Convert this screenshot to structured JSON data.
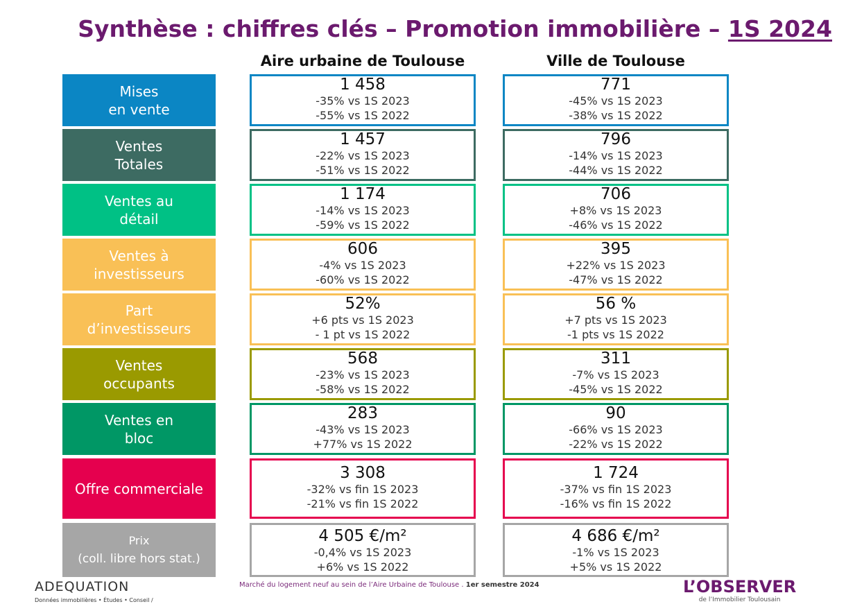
{
  "title": {
    "main": "Synthèse : chiffres clés – Promotion immobilière – ",
    "year": "1S 2024"
  },
  "columns": {
    "left": "Aire urbaine de Toulouse",
    "right": "Ville de Toulouse"
  },
  "rows": [
    {
      "label_l1": "Mises",
      "label_l2": "en vente",
      "color": "#0b86c4",
      "left": {
        "value": "1 458",
        "l1": "-35% vs 1S 2023",
        "l2": "-55% vs 1S 2022"
      },
      "right": {
        "value": "771",
        "l1": "-45% vs 1S 2023",
        "l2": "-38% vs 1S 2022"
      }
    },
    {
      "label_l1": "Ventes",
      "label_l2": "Totales",
      "color": "#3d6b62",
      "left": {
        "value": "1 457",
        "l1": "-22% vs 1S 2023",
        "l2": "-51% vs 1S 2022"
      },
      "right": {
        "value": "796",
        "l1": "-14% vs 1S 2023",
        "l2": "-44% vs 1S 2022"
      }
    },
    {
      "label_l1": "Ventes au",
      "label_l2": "détail",
      "color": "#00c185",
      "left": {
        "value": "1 174",
        "l1": "-14% vs 1S 2023",
        "l2": "-59% vs 1S 2022"
      },
      "right": {
        "value": "706",
        "l1": "+8% vs 1S 2023",
        "l2": "-46% vs 1S 2022"
      }
    },
    {
      "label_l1": "Ventes à",
      "label_l2": "investisseurs",
      "color": "#f9c056",
      "left": {
        "value": "606",
        "l1": "-4% vs 1S 2023",
        "l2": "-60% vs 1S 2022"
      },
      "right": {
        "value": "395",
        "l1": "+22% vs 1S 2023",
        "l2": "-47% vs 1S 2022"
      }
    },
    {
      "label_l1": "Part",
      "label_l2": "d’investisseurs",
      "color": "#f9c056",
      "left": {
        "value": "52%",
        "l1": "+6 pts vs 1S 2023",
        "l2": "- 1 pt vs 1S 2022"
      },
      "right": {
        "value": "56 %",
        "l1": "+7 pts vs 1S 2023",
        "l2": "-1 pts vs 1S 2022"
      }
    },
    {
      "label_l1": "Ventes",
      "label_l2": "occupants",
      "color": "#9a9a00",
      "left": {
        "value": "568",
        "l1": "-23% vs 1S 2023",
        "l2": "-58% vs 1S 2022"
      },
      "right": {
        "value": "311",
        "l1": "-7% vs 1S 2023",
        "l2": "-45% vs 1S 2022"
      }
    },
    {
      "label_l1": "Ventes en",
      "label_l2": "bloc",
      "color": "#009765",
      "left": {
        "value": "283",
        "l1": "-43% vs 1S 2023",
        "l2": "+77% vs 1S 2022"
      },
      "right": {
        "value": "90",
        "l1": "-66% vs 1S 2023",
        "l2": "-22% vs 1S 2022"
      }
    },
    {
      "label_l1": "Offre commerciale",
      "label_l2": "",
      "color": "#e5004e",
      "left": {
        "value": "3 308",
        "l1": "-32% vs fin 1S 2023",
        "l2": "-21% vs fin 1S 2022"
      },
      "right": {
        "value": "1 724",
        "l1": "-37% vs fin 1S 2023",
        "l2": "-16% vs fin 1S 2022"
      }
    },
    {
      "label_l1": "Prix",
      "label_l2": "(coll. libre hors stat.)",
      "color": "#a6a6a6",
      "left": {
        "value": "4 505 €/m²",
        "l1": "-0,4% vs 1S 2023",
        "l2": "+6% vs 1S 2022"
      },
      "right": {
        "value": "4 686 €/m²",
        "l1": "-1% vs 1S 2023",
        "l2": "+5% vs 1S 2022"
      }
    }
  ],
  "footer": {
    "note": "Marché du logement neuf au sein de l’Aire Urbaine de Toulouse . ",
    "note_bold": "1er semestre 2024",
    "adequation_name": "ADEQUATION",
    "adequation_tag": "Données immobilières • Études • Conseil /",
    "observer_name": "L’OBSERVER",
    "observer_tag": "de l’Immobilier Toulousain"
  }
}
